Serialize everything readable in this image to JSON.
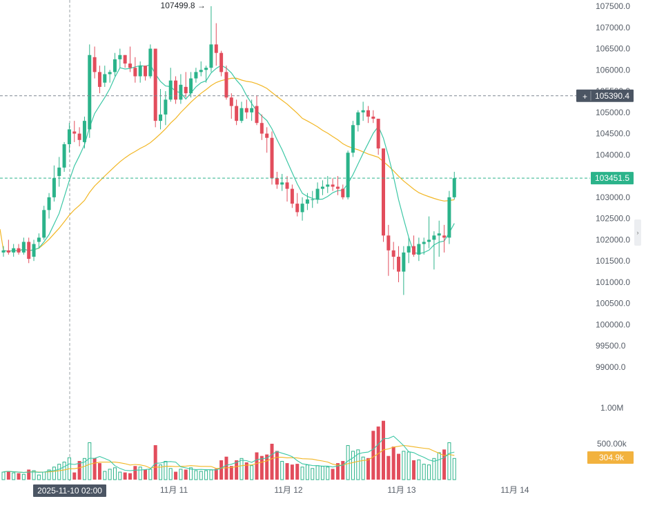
{
  "colors": {
    "up": "#2bb38a",
    "down": "#e24d5c",
    "ma_fast": "#3cc7a5",
    "ma_slow": "#f2b623",
    "current_price_bg": "#2bb38a",
    "crosshair_price_bg": "#4b5563",
    "volume_value_bg": "#f2b23e",
    "date_label_bg": "#4b5563"
  },
  "chart_data": {
    "type": "candlestick",
    "y_axis": {
      "ticks": [
        "107500.0",
        "107000.0",
        "106500.0",
        "106000.0",
        "105500.0",
        "105000.0",
        "104500.0",
        "104000.0",
        "103500.0",
        "103000.0",
        "102500.0",
        "102000.0",
        "101500.0",
        "101000.0",
        "100500.0",
        "100000.0",
        "99500.0",
        "99000.0"
      ],
      "ylim": [
        99000,
        107500
      ]
    },
    "x_axis": {
      "ticks": [
        "11月 11",
        "11月 12",
        "11月 13",
        "11月 14"
      ]
    },
    "volume_axis": {
      "ticks": [
        "1.00M",
        "500.00k"
      ],
      "ylim": [
        0,
        1000000
      ]
    },
    "annotations": {
      "high_marker": "107499.8",
      "current_price": "103451.5",
      "crosshair_price": "105390.4",
      "crosshair_date": "2025-11-10 02:00",
      "current_volume": "304.9k"
    },
    "candles": [
      [
        101700,
        101850,
        101600,
        101750
      ],
      [
        101750,
        102000,
        101650,
        101700
      ],
      [
        101700,
        101900,
        101600,
        101800
      ],
      [
        101800,
        101900,
        101650,
        101700
      ],
      [
        101700,
        102050,
        101650,
        101950
      ],
      [
        101950,
        102050,
        101450,
        101550
      ],
      [
        101600,
        102000,
        101500,
        101900
      ],
      [
        101950,
        102150,
        101800,
        102050
      ],
      [
        102050,
        102800,
        102000,
        102700
      ],
      [
        102700,
        103100,
        102500,
        103000
      ],
      [
        103000,
        103750,
        102900,
        103450
      ],
      [
        103500,
        103950,
        103250,
        103700
      ],
      [
        103700,
        104300,
        103600,
        104250
      ],
      [
        104250,
        104750,
        104050,
        104600
      ],
      [
        104550,
        104800,
        104300,
        104500
      ],
      [
        104500,
        104650,
        104200,
        104350
      ],
      [
        104300,
        104900,
        104150,
        104800
      ],
      [
        104600,
        106600,
        104400,
        106350
      ],
      [
        106300,
        106550,
        105800,
        105950
      ],
      [
        105950,
        106100,
        105450,
        105600
      ],
      [
        105700,
        106100,
        105600,
        105900
      ],
      [
        105900,
        106000,
        105700,
        105950
      ],
      [
        105950,
        106400,
        105850,
        106250
      ],
      [
        106250,
        106500,
        106050,
        106350
      ],
      [
        106350,
        106350,
        106050,
        106150
      ],
      [
        106150,
        106550,
        105950,
        106050
      ],
      [
        106050,
        106300,
        105700,
        105850
      ],
      [
        105850,
        106200,
        105700,
        106100
      ],
      [
        106100,
        106100,
        105750,
        105850
      ],
      [
        105850,
        106600,
        105800,
        106500
      ],
      [
        106500,
        106500,
        104650,
        104800
      ],
      [
        104800,
        105550,
        104600,
        104950
      ],
      [
        104950,
        105500,
        104700,
        105300
      ],
      [
        105300,
        106050,
        105250,
        105750
      ],
      [
        105750,
        105850,
        105200,
        105300
      ],
      [
        105300,
        105900,
        105200,
        105650
      ],
      [
        105600,
        105950,
        105350,
        105450
      ],
      [
        105450,
        105950,
        105350,
        105800
      ],
      [
        105800,
        106050,
        105700,
        105950
      ],
      [
        105950,
        106200,
        105850,
        106000
      ],
      [
        106000,
        106100,
        105700,
        106050
      ],
      [
        106050,
        107500,
        105950,
        106600
      ],
      [
        106600,
        107100,
        106100,
        106400
      ],
      [
        106400,
        106450,
        105850,
        105950
      ],
      [
        105950,
        106100,
        105300,
        105350
      ],
      [
        105350,
        105450,
        104850,
        105150
      ],
      [
        105150,
        105300,
        104700,
        104800
      ],
      [
        104800,
        105250,
        104750,
        105100
      ],
      [
        105100,
        105300,
        104850,
        105000
      ],
      [
        105000,
        105300,
        104800,
        105100
      ],
      [
        105150,
        105400,
        104700,
        104750
      ],
      [
        104750,
        104950,
        104350,
        104500
      ],
      [
        104500,
        104650,
        104050,
        104400
      ],
      [
        104400,
        104550,
        103300,
        103450
      ],
      [
        103450,
        103600,
        103200,
        103300
      ],
      [
        103300,
        103550,
        103150,
        103350
      ],
      [
        103350,
        103500,
        102900,
        103200
      ],
      [
        103200,
        103300,
        102750,
        102850
      ],
      [
        102850,
        103100,
        102550,
        102650
      ],
      [
        102650,
        103000,
        102450,
        102850
      ],
      [
        102850,
        103100,
        102700,
        102950
      ],
      [
        102950,
        103150,
        102750,
        102950
      ],
      [
        102950,
        103350,
        102850,
        103200
      ],
      [
        103200,
        103400,
        103050,
        103250
      ],
      [
        103250,
        103500,
        103100,
        103300
      ],
      [
        103300,
        103450,
        103150,
        103250
      ],
      [
        103250,
        103500,
        103050,
        103200
      ],
      [
        103200,
        103300,
        102950,
        103000
      ],
      [
        103000,
        104100,
        102950,
        104050
      ],
      [
        104050,
        104800,
        103950,
        104700
      ],
      [
        104700,
        105050,
        104550,
        105000
      ],
      [
        105000,
        105250,
        104800,
        105050
      ],
      [
        105050,
        105150,
        104750,
        104900
      ],
      [
        104900,
        105050,
        104750,
        104850
      ],
      [
        104850,
        104850,
        104000,
        104150
      ],
      [
        104150,
        104150,
        101950,
        102100
      ],
      [
        102100,
        102350,
        101150,
        101750
      ],
      [
        101750,
        101950,
        101300,
        101600
      ],
      [
        101600,
        101850,
        101000,
        101250
      ],
      [
        101250,
        101850,
        100700,
        101700
      ],
      [
        101700,
        102050,
        101450,
        101850
      ],
      [
        101850,
        102100,
        101600,
        101650
      ],
      [
        101650,
        102050,
        101500,
        101900
      ],
      [
        101900,
        102050,
        101650,
        101950
      ],
      [
        101950,
        102550,
        101800,
        102000
      ],
      [
        102000,
        102200,
        101300,
        102100
      ],
      [
        102100,
        102450,
        101600,
        102150
      ],
      [
        102100,
        102350,
        101700,
        102050
      ],
      [
        102050,
        103150,
        101900,
        103000
      ],
      [
        103000,
        103600,
        102950,
        103450
      ]
    ],
    "volumes": [
      110,
      120,
      100,
      90,
      80,
      140,
      130,
      70,
      110,
      140,
      180,
      220,
      250,
      310,
      100,
      260,
      300,
      520,
      300,
      230,
      120,
      150,
      170,
      110,
      100,
      90,
      190,
      180,
      140,
      150,
      480,
      210,
      260,
      160,
      110,
      150,
      140,
      170,
      130,
      120,
      130,
      140,
      150,
      270,
      320,
      190,
      270,
      300,
      240,
      200,
      380,
      330,
      350,
      500,
      400,
      260,
      230,
      210,
      220,
      180,
      210,
      160,
      200,
      190,
      180,
      150,
      230,
      260,
      480,
      400,
      420,
      320,
      300,
      680,
      740,
      820,
      330,
      460,
      360,
      400,
      390,
      270,
      280,
      220,
      210,
      300,
      380,
      420,
      520,
      300
    ]
  }
}
